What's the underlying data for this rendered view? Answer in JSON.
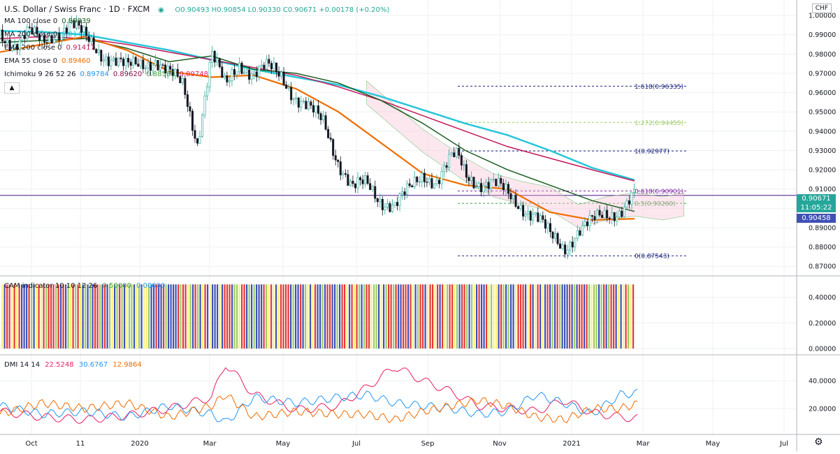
{
  "header": {
    "symbol": "U.S. Dollar / Swiss Franc · 1D · FXCM",
    "ohlc": "O0.90493 H0.90854 L0.90330 C0.90671 +0.00178 (+0.20%)",
    "currency": "CHF"
  },
  "legends": [
    {
      "label": "MA 100 close 0",
      "value": "0.89839",
      "color": "#1b5e20"
    },
    {
      "label": "MA 200 close 0",
      "value": "0.91473",
      "color": "#26c6da"
    },
    {
      "label": "EMA 200 close 0",
      "value": "0.91417",
      "color": "#c2185b"
    },
    {
      "label": "EMA 55 close 0",
      "value": "0.89460",
      "color": "#ef6c00"
    },
    {
      "label": "Ichimoku 9 26 52 26",
      "values": [
        "0.89784",
        "0.89620",
        "0.88580",
        "0.89748"
      ],
      "colors": [
        "#2196f3",
        "#880e4f",
        "#43a047",
        "#e91e63"
      ]
    }
  ],
  "price_tags": {
    "last": "0.90671",
    "countdown": "11:05:22",
    "ma": "0.90458"
  },
  "colors": {
    "up": "#26a69a",
    "down": "#131722",
    "ma100": "#1b5e20",
    "ma200": "#26c6da",
    "ema200": "#c2185b",
    "ema55": "#ef6c00",
    "tenkan": "#2196f3",
    "kijun": "#880e4f",
    "fib": "#1a237e"
  },
  "cam": {
    "label": "CAM indicator 10 10 12 26",
    "v1": "0.50000",
    "v2": "0.00000"
  },
  "dmi": {
    "label": "DMI 14 14",
    "v1": "22.5248",
    "v2": "30.6767",
    "v3": "12.9864"
  },
  "chart_data": [
    {
      "type": "line",
      "title": "U.S. Dollar / Swiss Franc · 1D · FXCM",
      "y_ticks": [
        "0.87000",
        "0.88000",
        "0.89000",
        "0.90000",
        "0.91000",
        "0.92000",
        "0.93000",
        "0.94000",
        "0.95000",
        "0.96000",
        "0.97000",
        "0.98000",
        "0.99000",
        "1.00000"
      ],
      "x_ticks": [
        "Oct",
        "11",
        "2020",
        "Mar",
        "May",
        "Jul",
        "Sep",
        "Nov",
        "2021",
        "Mar",
        "May",
        "Jul"
      ],
      "ylim": [
        0.865,
        1.008
      ],
      "fib_levels": [
        {
          "label": "1.618(0.96335)",
          "value": 0.96335,
          "color": "#1a237e"
        },
        {
          "label": "1.272(0.94455)",
          "value": 0.94455,
          "color": "#9ccc65"
        },
        {
          "label": "1(0.92977)",
          "value": 0.92977,
          "color": "#1a237e"
        },
        {
          "label": "0.618(0.90901)",
          "value": 0.90901,
          "color": "#7b1fa2"
        },
        {
          "label": "0.5(0.90260)",
          "value": 0.9026,
          "color": "#43a047"
        },
        {
          "label": "0(0.87543)",
          "value": 0.87543,
          "color": "#1a237e"
        }
      ],
      "series": [
        {
          "name": "MA 200 close 0",
          "x": [
            0,
            60,
            120,
            180,
            240,
            300,
            360,
            420,
            480,
            540,
            600,
            660,
            720,
            780,
            840,
            900
          ],
          "values": [
            0.992,
            0.9915,
            0.99,
            0.986,
            0.982,
            0.977,
            0.972,
            0.968,
            0.964,
            0.958,
            0.951,
            0.944,
            0.938,
            0.93,
            0.921,
            0.9147
          ]
        },
        {
          "name": "EMA 200 close 0",
          "x": [
            0,
            60,
            120,
            180,
            240,
            300,
            360,
            420,
            480,
            540,
            600,
            660,
            720,
            780,
            840,
            900
          ],
          "values": [
            0.988,
            0.989,
            0.988,
            0.985,
            0.981,
            0.977,
            0.973,
            0.969,
            0.963,
            0.956,
            0.948,
            0.94,
            0.932,
            0.926,
            0.92,
            0.9142
          ]
        },
        {
          "name": "MA 100 close 0",
          "x": [
            0,
            60,
            120,
            180,
            240,
            300,
            360,
            420,
            480,
            540,
            600,
            660,
            720,
            780,
            840,
            900
          ],
          "values": [
            0.986,
            0.987,
            0.988,
            0.983,
            0.976,
            0.979,
            0.972,
            0.97,
            0.965,
            0.956,
            0.944,
            0.93,
            0.92,
            0.912,
            0.904,
            0.8984
          ]
        },
        {
          "name": "EMA 55 close 0",
          "x": [
            0,
            60,
            120,
            180,
            240,
            300,
            360,
            420,
            480,
            540,
            600,
            660,
            720,
            780,
            840,
            900
          ],
          "values": [
            0.981,
            0.985,
            0.989,
            0.982,
            0.971,
            0.968,
            0.969,
            0.962,
            0.95,
            0.934,
            0.918,
            0.912,
            0.91,
            0.898,
            0.894,
            0.8946
          ]
        },
        {
          "name": "Close",
          "x": [
            0,
            20,
            40,
            60,
            80,
            100,
            120,
            140,
            160,
            180,
            200,
            220,
            240,
            260,
            280,
            300,
            320,
            330,
            340,
            360,
            380,
            400,
            420,
            440,
            460,
            480,
            500,
            520,
            540,
            560,
            580,
            600,
            620,
            640,
            650,
            660,
            680,
            700,
            720,
            740,
            760,
            780,
            800,
            820,
            840,
            860,
            880,
            900
          ],
          "values": [
            0.99,
            0.986,
            0.991,
            0.985,
            0.992,
            0.996,
            0.988,
            0.982,
            0.978,
            0.972,
            0.975,
            0.978,
            0.969,
            0.963,
            0.935,
            0.98,
            0.962,
            0.97,
            0.976,
            0.97,
            0.972,
            0.969,
            0.958,
            0.95,
            0.944,
            0.925,
            0.91,
            0.912,
            0.905,
            0.902,
            0.908,
            0.918,
            0.915,
            0.925,
            0.926,
            0.918,
            0.914,
            0.912,
            0.907,
            0.902,
            0.896,
            0.885,
            0.88,
            0.889,
            0.892,
            0.897,
            0.9,
            0.9067
          ]
        }
      ]
    },
    {
      "type": "bar",
      "title": "CAM indicator 10 10 12 26",
      "y_ticks": [
        "0.00000",
        "0.20000",
        "0.40000"
      ],
      "ylim": [
        0,
        0.55
      ],
      "bar_value": 0.5,
      "colors_sequence": [
        "blue",
        "red",
        "blue",
        "yellow",
        "green",
        "red",
        "blue",
        "yellow",
        "green",
        "red"
      ]
    },
    {
      "type": "line",
      "title": "DMI 14 14",
      "y_ticks": [
        "20.0000",
        "40.0000"
      ],
      "ylim": [
        2,
        58
      ],
      "series": [
        {
          "name": "ADX",
          "x": [
            0,
            60,
            120,
            180,
            240,
            300,
            320,
            360,
            420,
            480,
            520,
            560,
            600,
            640,
            680,
            720,
            760,
            800,
            840,
            880,
            900
          ],
          "values": [
            18,
            14,
            12,
            15,
            20,
            28,
            52,
            30,
            19,
            22,
            35,
            50,
            40,
            32,
            22,
            20,
            18,
            26,
            17,
            14,
            13
          ]
        },
        {
          "name": "+DI",
          "x": [
            0,
            60,
            120,
            180,
            240,
            300,
            320,
            360,
            420,
            480,
            520,
            560,
            600,
            640,
            680,
            720,
            760,
            800,
            840,
            880,
            900
          ],
          "values": [
            22,
            16,
            18,
            14,
            22,
            16,
            10,
            28,
            24,
            28,
            30,
            24,
            22,
            20,
            16,
            18,
            30,
            24,
            16,
            30,
            31
          ]
        },
        {
          "name": "-DI",
          "x": [
            0,
            60,
            120,
            180,
            240,
            300,
            320,
            360,
            420,
            480,
            520,
            560,
            600,
            640,
            680,
            720,
            760,
            800,
            840,
            880,
            900
          ],
          "values": [
            16,
            24,
            20,
            24,
            14,
            22,
            30,
            14,
            18,
            16,
            16,
            12,
            18,
            22,
            26,
            22,
            14,
            12,
            20,
            20,
            23
          ]
        }
      ]
    }
  ]
}
